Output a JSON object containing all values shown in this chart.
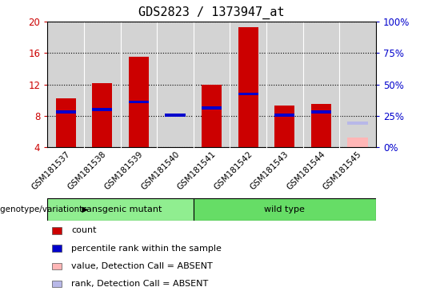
{
  "title": "GDS2823 / 1373947_at",
  "samples": [
    "GSM181537",
    "GSM181538",
    "GSM181539",
    "GSM181540",
    "GSM181541",
    "GSM181542",
    "GSM181543",
    "GSM181544",
    "GSM181545"
  ],
  "count_values": [
    10.2,
    12.2,
    15.5,
    null,
    12.0,
    19.3,
    9.3,
    9.5,
    null
  ],
  "rank_values": [
    8.5,
    8.8,
    9.8,
    8.1,
    9.0,
    10.8,
    8.1,
    8.5,
    null
  ],
  "absent_value": [
    null,
    null,
    null,
    null,
    null,
    null,
    null,
    null,
    5.3
  ],
  "absent_rank": [
    null,
    null,
    null,
    null,
    null,
    null,
    null,
    null,
    7.1
  ],
  "ylim": [
    4,
    20
  ],
  "yticks_left": [
    4,
    8,
    12,
    16,
    20
  ],
  "yticks_right": [
    0,
    25,
    50,
    75,
    100
  ],
  "groups": [
    {
      "label": "transgenic mutant",
      "start": 0,
      "end": 3,
      "color": "#90ee90"
    },
    {
      "label": "wild type",
      "start": 4,
      "end": 8,
      "color": "#66dd66"
    }
  ],
  "bar_color_red": "#cc0000",
  "bar_color_blue": "#0000cc",
  "bar_color_absent_pink": "#ffb6b6",
  "bar_color_absent_lavender": "#b8b8e8",
  "bar_width": 0.55,
  "grid_linestyle": "dotted",
  "bg_color_plot": "#d3d3d3",
  "tick_area_bg": "#c8c8c8",
  "group_row_bg": "#c0c0c0",
  "legend_items": [
    {
      "color": "#cc0000",
      "label": "count"
    },
    {
      "color": "#0000cc",
      "label": "percentile rank within the sample"
    },
    {
      "color": "#ffb6b6",
      "label": "value, Detection Call = ABSENT"
    },
    {
      "color": "#b8b8e8",
      "label": "rank, Detection Call = ABSENT"
    }
  ],
  "xlabel_group": "genotype/variation"
}
